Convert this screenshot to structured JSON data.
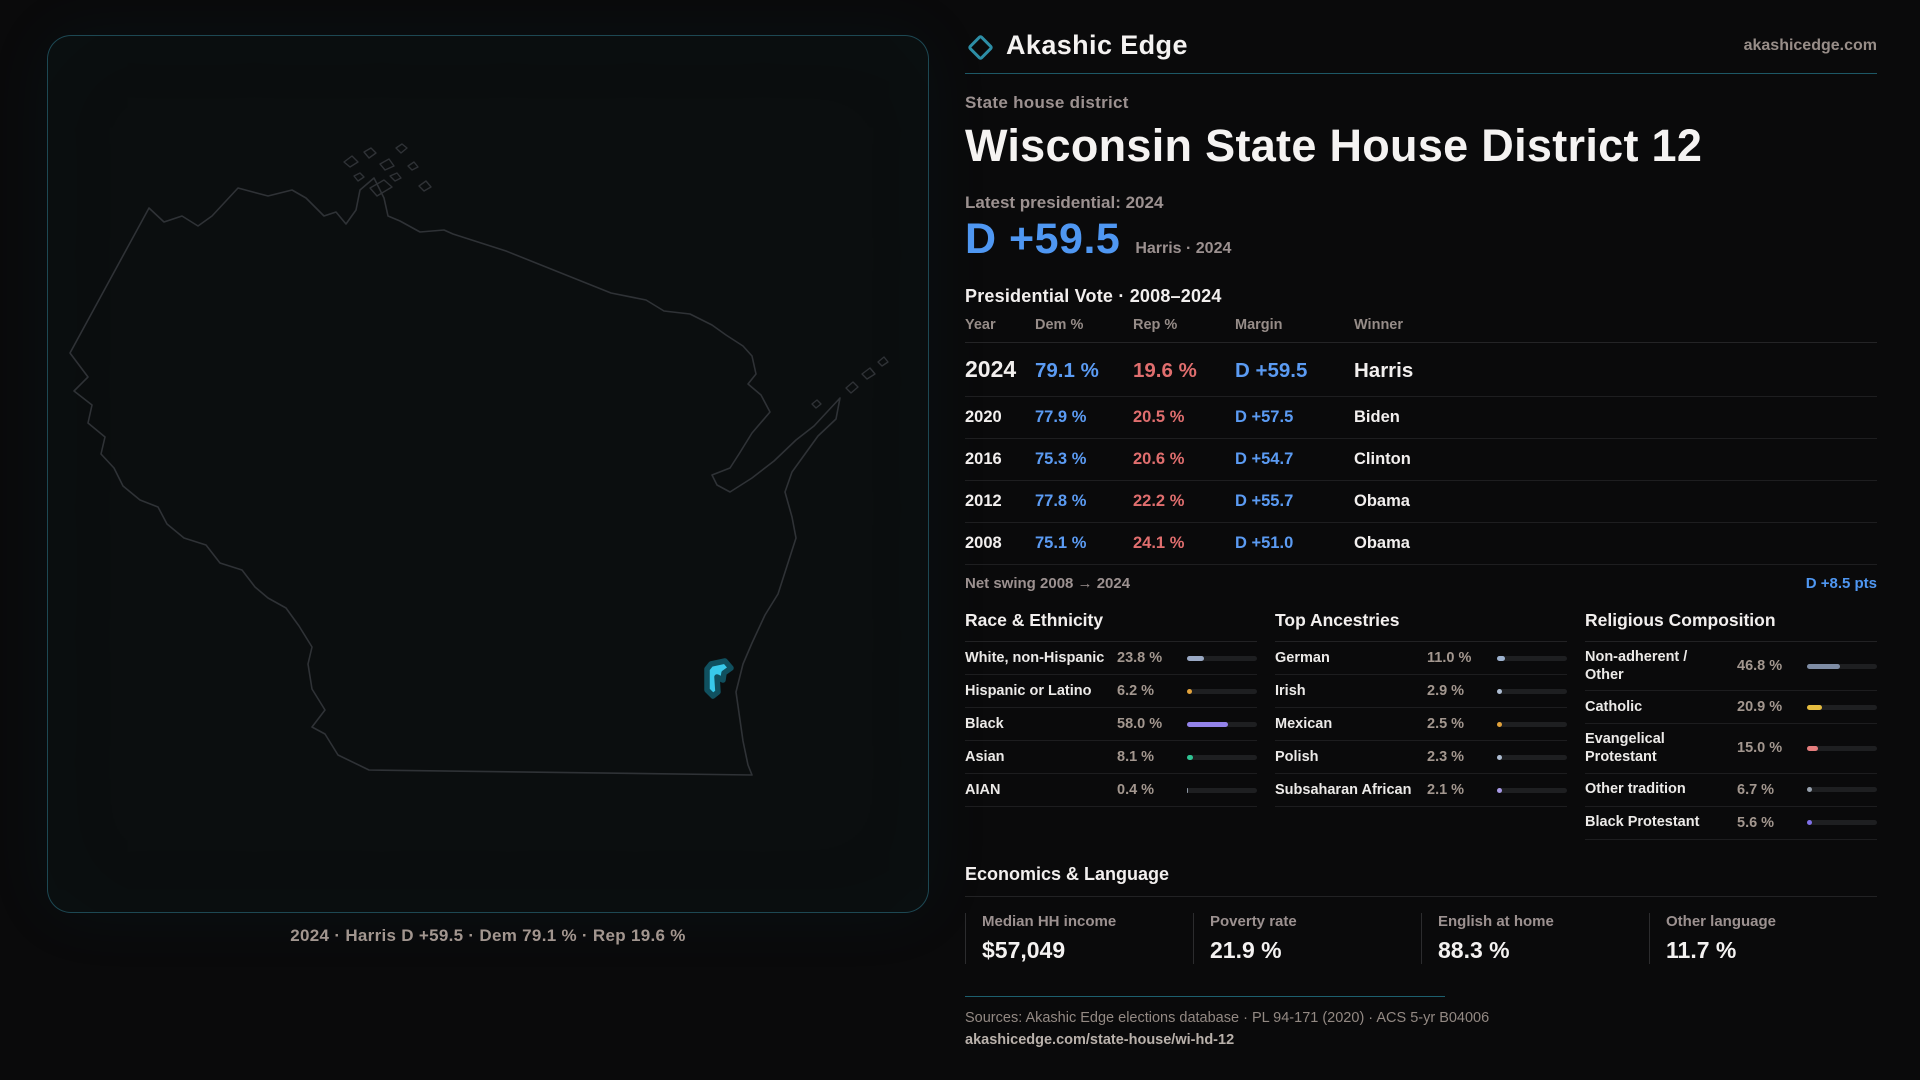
{
  "brand": {
    "name": "Akashic Edge",
    "domain": "akashicedge.com"
  },
  "page": {
    "kicker": "State house district",
    "title": "Wisconsin State House District 12",
    "latest_label": "Latest presidential: 2024",
    "headline_margin": "D +59.5",
    "headline_sub": "Harris · 2024"
  },
  "map": {
    "caption": "2024 · Harris D +59.5 · Dem 79.1 % · Rep 19.6 %",
    "district_color": "#38c9ea"
  },
  "vote_table": {
    "title": "Presidential Vote · 2008–2024",
    "columns": [
      "Year",
      "Dem %",
      "Rep %",
      "Margin",
      "Winner"
    ],
    "rows": [
      {
        "year": "2024",
        "dem": "79.1 %",
        "rep": "19.6 %",
        "margin": "D +59.5",
        "winner": "Harris",
        "featured": true
      },
      {
        "year": "2020",
        "dem": "77.9 %",
        "rep": "20.5 %",
        "margin": "D +57.5",
        "winner": "Biden",
        "featured": false
      },
      {
        "year": "2016",
        "dem": "75.3 %",
        "rep": "20.6 %",
        "margin": "D +54.7",
        "winner": "Clinton",
        "featured": false
      },
      {
        "year": "2012",
        "dem": "77.8 %",
        "rep": "22.2 %",
        "margin": "D +55.7",
        "winner": "Obama",
        "featured": false
      },
      {
        "year": "2008",
        "dem": "75.1 %",
        "rep": "24.1 %",
        "margin": "D +51.0",
        "winner": "Obama",
        "featured": false
      }
    ],
    "net_swing_label": "Net swing 2008 → 2024",
    "net_swing_value": "D +8.5 pts"
  },
  "demographics": [
    {
      "title": "Race & Ethnicity",
      "rows": [
        {
          "label": "White, non-Hispanic",
          "value": "23.8 %",
          "pct": 23.8,
          "color": "#9aa9c4"
        },
        {
          "label": "Hispanic or Latino",
          "value": "6.2 %",
          "pct": 6.2,
          "color": "#e2a23b"
        },
        {
          "label": "Black",
          "value": "58.0 %",
          "pct": 58.0,
          "color": "#9383ea"
        },
        {
          "label": "Asian",
          "value": "8.1 %",
          "pct": 8.1,
          "color": "#2fc493"
        },
        {
          "label": "AIAN",
          "value": "0.4 %",
          "pct": 0.4,
          "color": "#8e97a3"
        }
      ]
    },
    {
      "title": "Top Ancestries",
      "rows": [
        {
          "label": "German",
          "value": "11.0 %",
          "pct": 11.0,
          "color": "#9db2cf"
        },
        {
          "label": "Irish",
          "value": "2.9 %",
          "pct": 2.9,
          "color": "#aebdd2"
        },
        {
          "label": "Mexican",
          "value": "2.5 %",
          "pct": 2.5,
          "color": "#e2a23b"
        },
        {
          "label": "Polish",
          "value": "2.3 %",
          "pct": 2.3,
          "color": "#aebdd2"
        },
        {
          "label": "Subsaharan African",
          "value": "2.1 %",
          "pct": 2.1,
          "color": "#a89ae6"
        }
      ]
    },
    {
      "title": "Religious Composition",
      "rows": [
        {
          "label": "Non-adherent / Other",
          "value": "46.8 %",
          "pct": 46.8,
          "color": "#7e8ca4"
        },
        {
          "label": "Catholic",
          "value": "20.9 %",
          "pct": 20.9,
          "color": "#e5bc3f"
        },
        {
          "label": "Evangelical Protestant",
          "value": "15.0 %",
          "pct": 15.0,
          "color": "#e57d7d"
        },
        {
          "label": "Other tradition",
          "value": "6.7 %",
          "pct": 6.7,
          "color": "#97a1ad"
        },
        {
          "label": "Black Protestant",
          "value": "5.6 %",
          "pct": 5.6,
          "color": "#7f70e8"
        }
      ]
    }
  ],
  "economics": {
    "title": "Economics & Language",
    "stats": [
      {
        "label": "Median HH income",
        "value": "$57,049"
      },
      {
        "label": "Poverty rate",
        "value": "21.9 %"
      },
      {
        "label": "English at home",
        "value": "88.3 %"
      },
      {
        "label": "Other language",
        "value": "11.7 %"
      }
    ]
  },
  "footer": {
    "sources": "Sources: Akashic Edge elections database · PL 94-171 (2020) · ACS 5-yr B04006",
    "permalink": "akashicedge.com/state-house/wi-hd-12"
  },
  "colors": {
    "dem_blue": "#5b9bf3",
    "rep_red": "#e06e6e",
    "accent_teal": "#2d8ea6"
  }
}
